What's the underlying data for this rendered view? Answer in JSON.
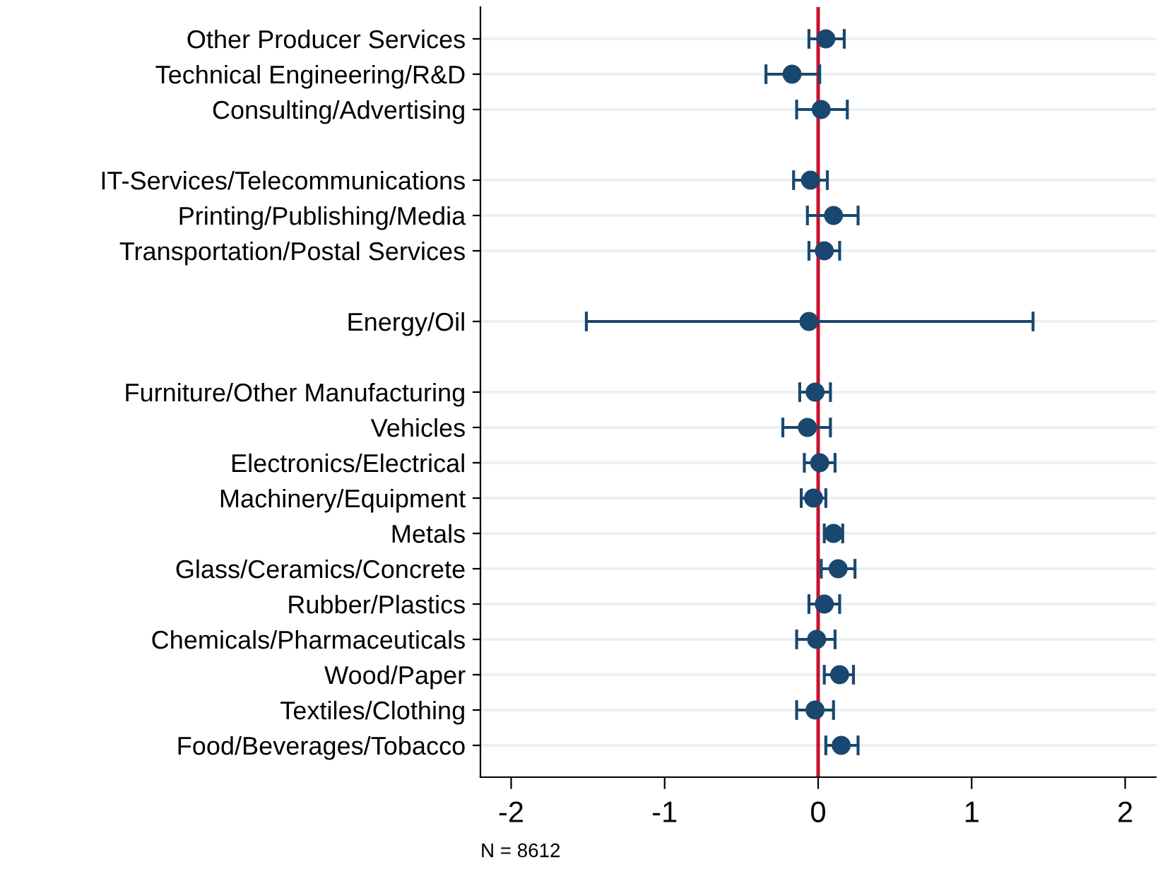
{
  "chart_data": {
    "type": "scatter",
    "orientation": "horizontal",
    "marker": "circle",
    "grid": "y",
    "legend": false,
    "categories": [
      "Other Producer Services",
      "Technical Engineering/R&D",
      "Consulting/Advertising",
      null,
      "IT-Services/Telecommunications",
      "Printing/Publishing/Media",
      "Transportation/Postal Services",
      null,
      "Energy/Oil",
      null,
      "Furniture/Other Manufacturing",
      "Vehicles",
      "Electronics/Electrical",
      "Machinery/Equipment",
      "Metals",
      "Glass/Ceramics/Concrete",
      "Rubber/Plastics",
      "Chemicals/Pharmaceuticals",
      "Wood/Paper",
      "Textiles/Clothing",
      "Food/Beverages/Tobacco"
    ],
    "series": [
      {
        "color": "#1a476f",
        "values": [
          0.05,
          -0.17,
          0.02,
          null,
          -0.05,
          0.1,
          0.04,
          null,
          -0.06,
          null,
          -0.02,
          -0.07,
          0.01,
          -0.03,
          0.1,
          0.13,
          0.04,
          -0.01,
          0.14,
          -0.02,
          0.15
        ],
        "errors": [
          [
            -0.06,
            0.17
          ],
          [
            -0.34,
            0.01
          ],
          [
            -0.14,
            0.19
          ],
          null,
          [
            -0.16,
            0.06
          ],
          [
            -0.07,
            0.26
          ],
          [
            -0.06,
            0.14
          ],
          null,
          [
            -1.51,
            1.4
          ],
          null,
          [
            -0.12,
            0.08
          ],
          [
            -0.23,
            0.08
          ],
          [
            -0.09,
            0.11
          ],
          [
            -0.11,
            0.05
          ],
          [
            0.04,
            0.16
          ],
          [
            0.02,
            0.24
          ],
          [
            -0.06,
            0.14
          ],
          [
            -0.14,
            0.11
          ],
          [
            0.04,
            0.23
          ],
          [
            -0.14,
            0.1
          ],
          [
            0.05,
            0.26
          ]
        ]
      }
    ],
    "xlim": [
      -2.2,
      2.2
    ],
    "xticks": [
      -2,
      -1,
      0,
      1,
      2
    ],
    "ref_lines": [
      {
        "axis": "x",
        "value": 0,
        "color": "#c8102e"
      }
    ],
    "annotations": [
      "N = 8612"
    ]
  }
}
